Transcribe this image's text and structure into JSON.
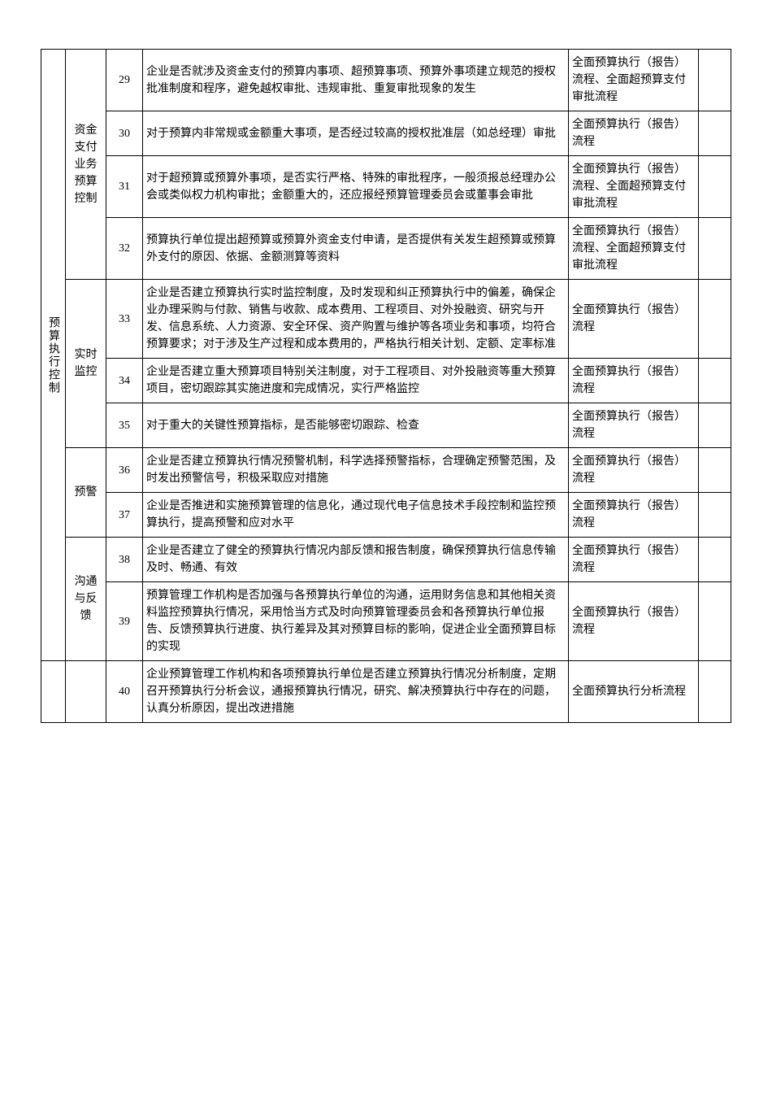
{
  "category1": "预算执行控制",
  "subcategories": {
    "fund": "资金支付业务预算控制",
    "monitor": "实时监控",
    "alert": "预警",
    "feedback": "沟通与反馈"
  },
  "rows": [
    {
      "num": "29",
      "desc": "企业是否就涉及资金支付的预算内事项、超预算事项、预算外事项建立规范的授权批准制度和程序，避免越权审批、违规审批、重复审批现象的发生",
      "ref": "全面预算执行（报告）流程、全面超预算支付审批流程"
    },
    {
      "num": "30",
      "desc": "对于预算内非常规或金额重大事项，是否经过较高的授权批准层（如总经理）审批",
      "ref": "全面预算执行（报告）流程"
    },
    {
      "num": "31",
      "desc": "对于超预算或预算外事项，是否实行严格、特殊的审批程序，一般须报总经理办公会或类似权力机构审批；金额重大的，还应报经预算管理委员会或董事会审批",
      "ref": "全面预算执行（报告）流程、全面超预算支付审批流程"
    },
    {
      "num": "32",
      "desc": "预算执行单位提出超预算或预算外资金支付申请，是否提供有关发生超预算或预算外支付的原因、依据、金额测算等资料",
      "ref": "全面预算执行（报告）流程、全面超预算支付审批流程"
    },
    {
      "num": "33",
      "desc": "企业是否建立预算执行实时监控制度，及时发现和纠正预算执行中的偏差，确保企业办理采购与付款、销售与收款、成本费用、工程项目、对外投融资、研究与开发、信息系统、人力资源、安全环保、资产购置与维护等各项业务和事项，均符合预算要求；对于涉及生产过程和成本费用的，严格执行相关计划、定额、定率标准",
      "ref": "全面预算执行（报告）流程"
    },
    {
      "num": "34",
      "desc": "企业是否建立重大预算项目特别关注制度，对于工程项目、对外投融资等重大预算项目，密切跟踪其实施进度和完成情况，实行严格监控",
      "ref": "全面预算执行（报告）流程"
    },
    {
      "num": "35",
      "desc": "对于重大的关键性预算指标，是否能够密切跟踪、检查",
      "ref": "全面预算执行（报告）流程"
    },
    {
      "num": "36",
      "desc": "企业是否建立预算执行情况预警机制，科学选择预警指标，合理确定预警范围，及时发出预警信号，积极采取应对措施",
      "ref": "全面预算执行（报告）流程"
    },
    {
      "num": "37",
      "desc": "企业是否推进和实施预算管理的信息化，通过现代电子信息技术手段控制和监控预算执行，提高预警和应对水平",
      "ref": "全面预算执行（报告）流程"
    },
    {
      "num": "38",
      "desc": "企业是否建立了健全的预算执行情况内部反馈和报告制度，确保预算执行信息传输及时、畅通、有效",
      "ref": "全面预算执行（报告）流程"
    },
    {
      "num": "39",
      "desc": "预算管理工作机构是否加强与各预算执行单位的沟通，运用财务信息和其他相关资料监控预算执行情况，采用恰当方式及时向预算管理委员会和各预算执行单位报告、反馈预算执行进度、执行差异及其对预算目标的影响，促进企业全面预算目标的实现",
      "ref": "全面预算执行（报告）流程"
    },
    {
      "num": "40",
      "desc": "企业预算管理工作机构和各项预算执行单位是否建立预算执行情况分析制度，定期召开预算执行分析会议，通报预算执行情况，研究、解决预算执行中存在的问题，认真分析原因，提出改进措施",
      "ref": "全面预算执行分析流程"
    }
  ]
}
